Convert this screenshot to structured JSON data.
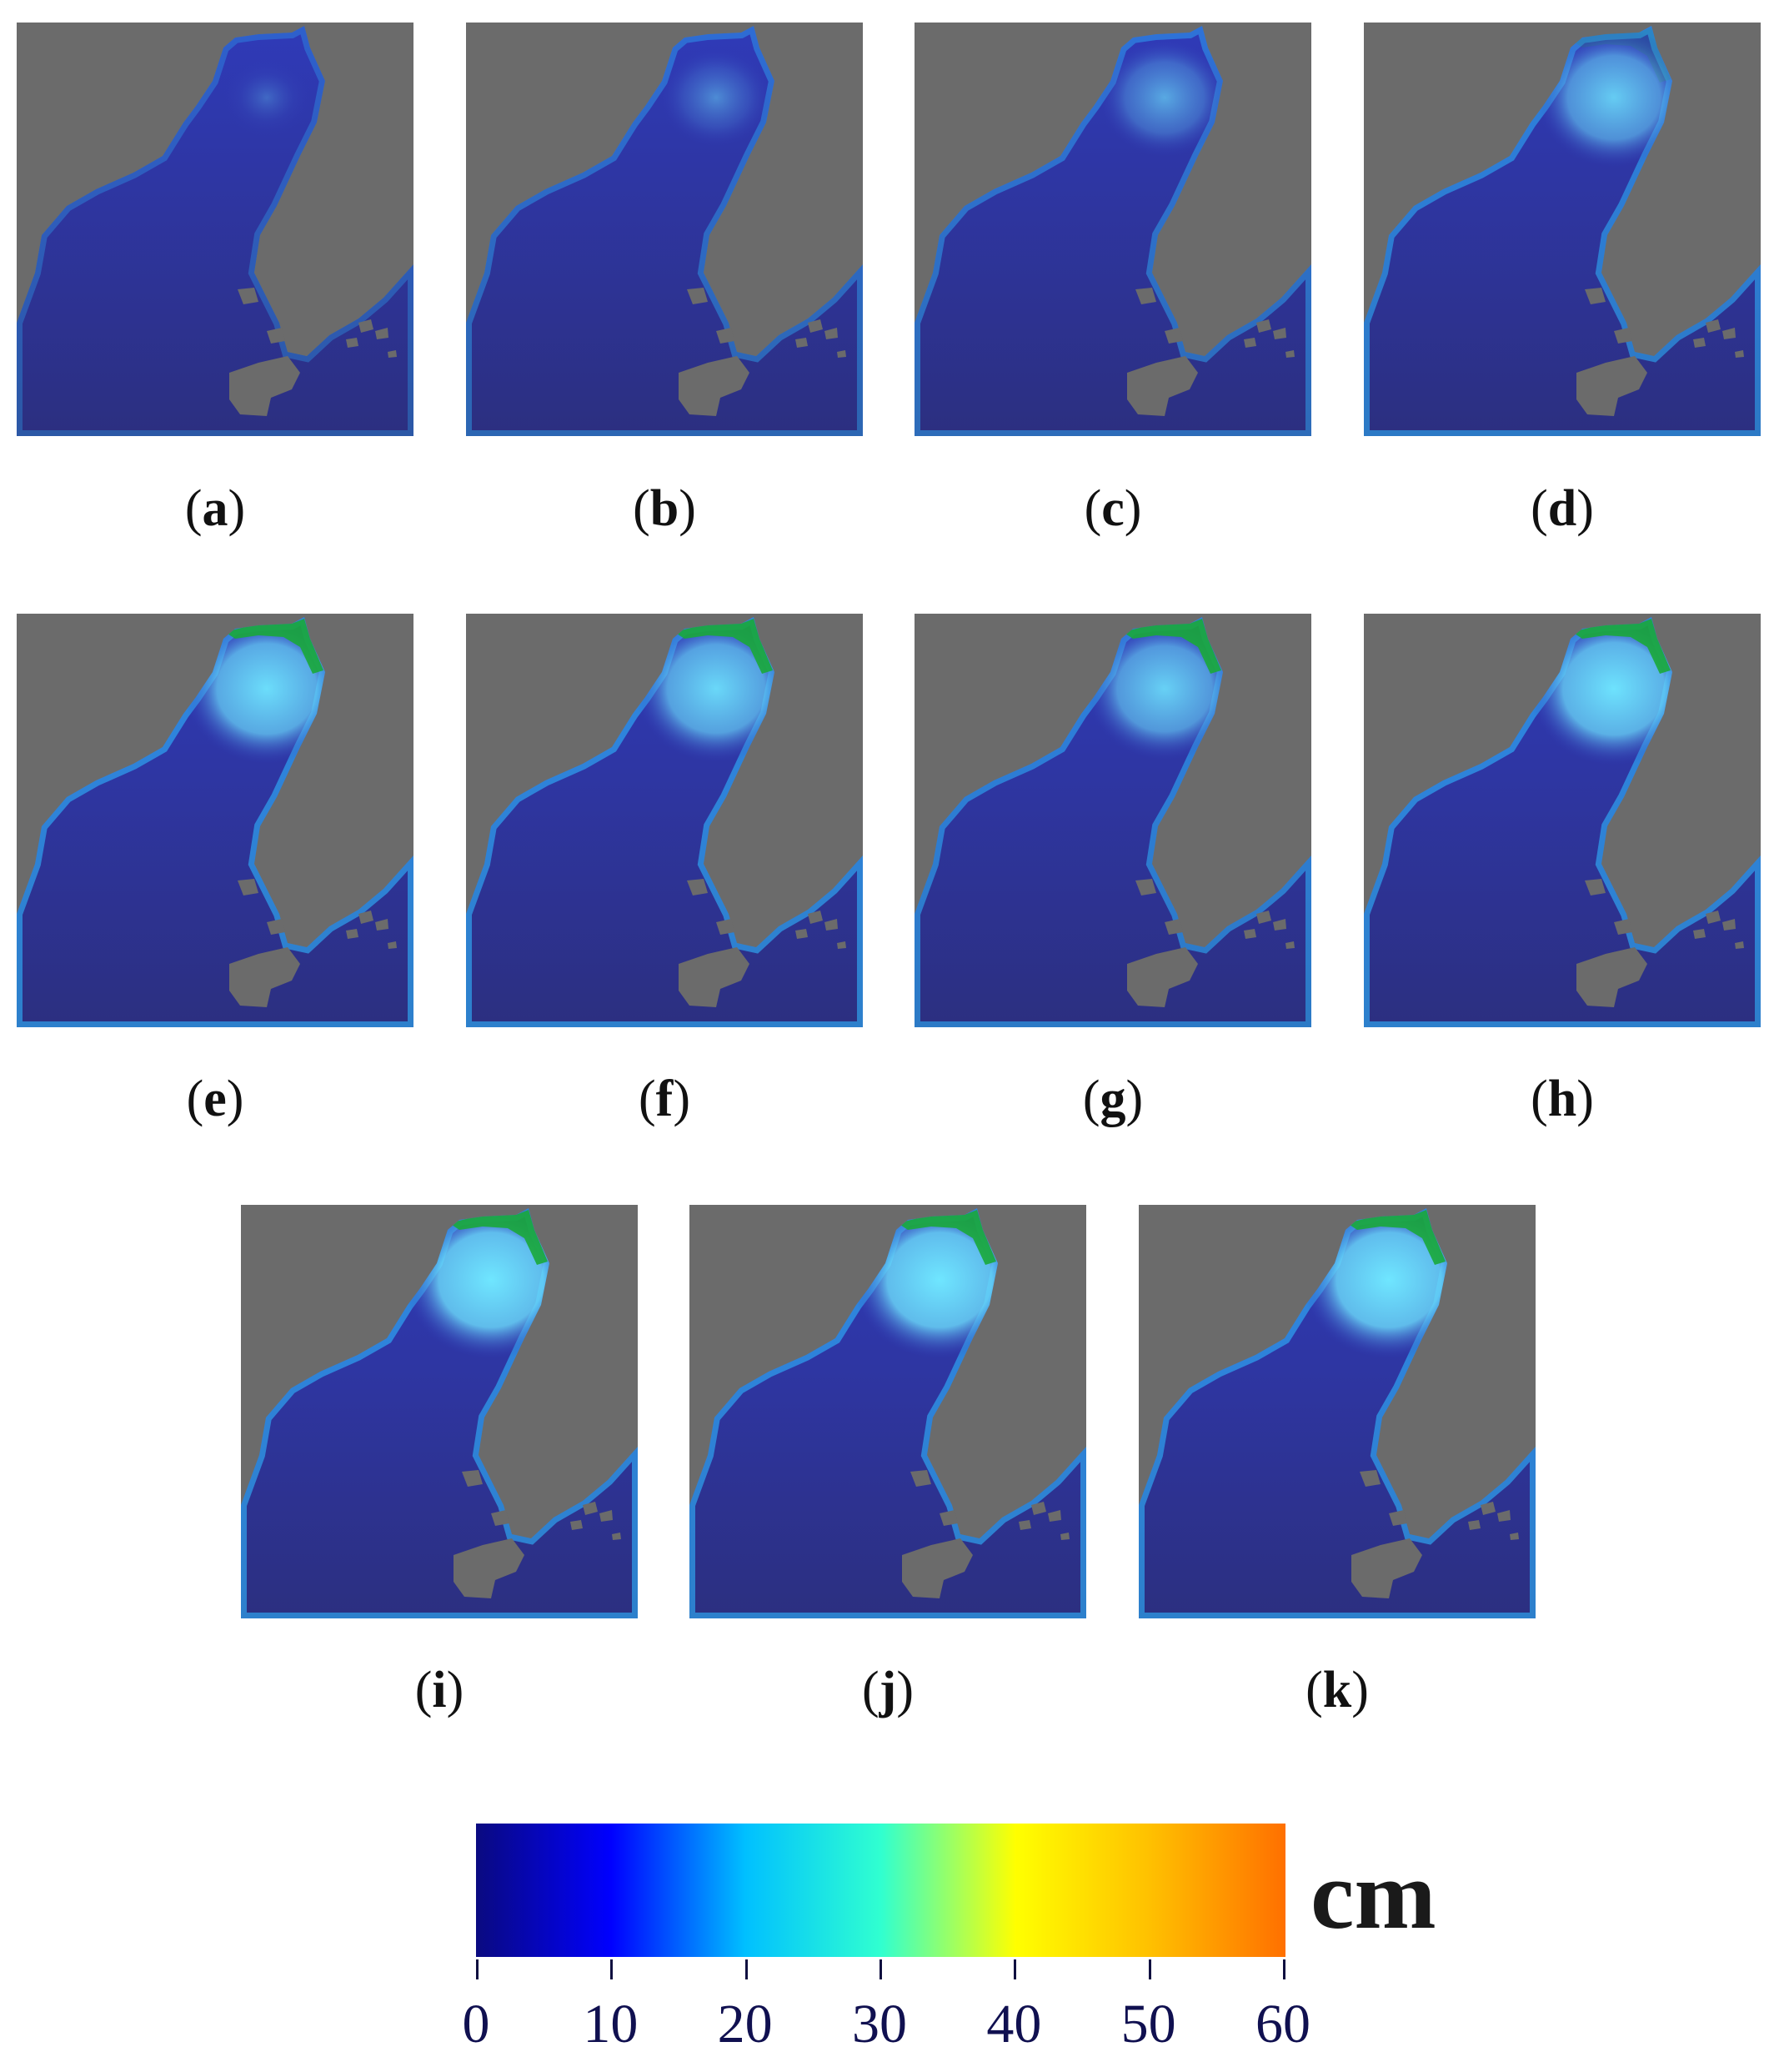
{
  "panels": [
    {
      "label": "a",
      "plume": 0.18,
      "inshore": 0.3,
      "green": 0.0
    },
    {
      "label": "b",
      "plume": 0.38,
      "inshore": 0.4,
      "green": 0.0
    },
    {
      "label": "c",
      "plume": 0.55,
      "inshore": 0.45,
      "green": 0.0
    },
    {
      "label": "d",
      "plume": 0.75,
      "inshore": 0.55,
      "green": 0.15
    },
    {
      "label": "e",
      "plume": 0.85,
      "inshore": 0.6,
      "green": 0.9
    },
    {
      "label": "f",
      "plume": 0.82,
      "inshore": 0.6,
      "green": 0.9
    },
    {
      "label": "g",
      "plume": 0.78,
      "inshore": 0.55,
      "green": 0.9
    },
    {
      "label": "h",
      "plume": 0.88,
      "inshore": 0.6,
      "green": 0.9
    },
    {
      "label": "i",
      "plume": 0.92,
      "inshore": 0.6,
      "green": 0.9
    },
    {
      "label": "j",
      "plume": 0.92,
      "inshore": 0.6,
      "green": 0.9
    },
    {
      "label": "k",
      "plume": 0.92,
      "inshore": 0.6,
      "green": 0.9
    }
  ],
  "colorbar": {
    "unit": "cm",
    "min": 0,
    "max": 60,
    "ticks": [
      "0",
      "10",
      "20",
      "30",
      "40",
      "50",
      "60"
    ],
    "colors": [
      "#0a0a80",
      "#0000ff",
      "#00c0ff",
      "#30ffd0",
      "#ffff00",
      "#ffc000",
      "#ff7000"
    ]
  },
  "colors": {
    "land": "#6b6b6b",
    "deep_water": "#2c2f80",
    "mid_water": "#2f3ab8",
    "plume": "#6fe6ff",
    "coastal": "#2eb8ff",
    "green": "#1aa83a"
  }
}
